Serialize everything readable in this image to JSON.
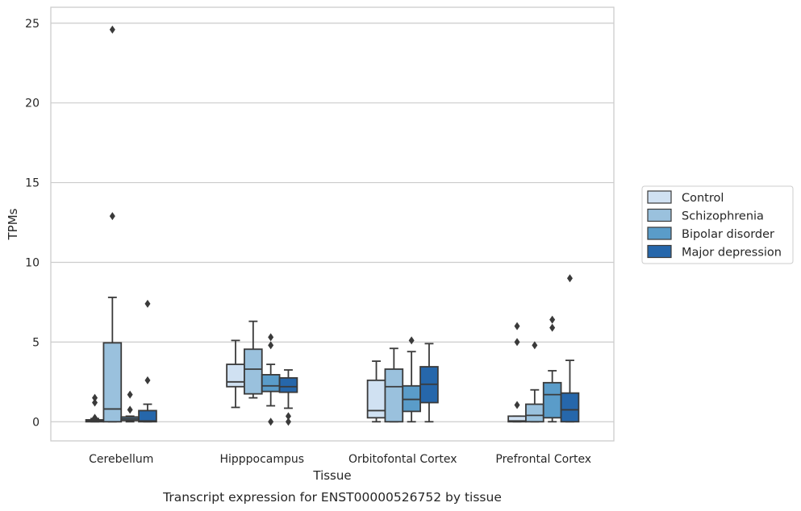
{
  "chart_data": {
    "type": "boxplot",
    "title": "",
    "xlabel": "Tissue",
    "ylabel": "TPMs",
    "caption": "Transcript expression for ENST00000526752 by tissue",
    "ylim": [
      -1.2,
      26
    ],
    "yticks": [
      0,
      5,
      10,
      15,
      20,
      25
    ],
    "grid": "horizontal",
    "legend_position": "right",
    "categories": [
      "Cerebellum",
      "Hipppocampus",
      "Orbitofontal Cortex",
      "Prefrontal Cortex"
    ],
    "series": [
      {
        "name": "Control",
        "color": "#d0e1f2",
        "boxes": [
          {
            "whisker_low": 0,
            "q1": 0,
            "median": 0.05,
            "q3": 0.12,
            "whisker_high": 0.2,
            "outliers": [
              0.25,
              1.2,
              1.5
            ]
          },
          {
            "whisker_low": 0.9,
            "q1": 2.2,
            "median": 2.5,
            "q3": 3.6,
            "whisker_high": 5.1,
            "outliers": []
          },
          {
            "whisker_low": 0,
            "q1": 0.25,
            "median": 0.7,
            "q3": 2.6,
            "whisker_high": 3.8,
            "outliers": []
          },
          {
            "whisker_low": 0,
            "q1": 0,
            "median": 0.05,
            "q3": 0.35,
            "whisker_high": 0.35,
            "outliers": [
              1.05,
              5.0,
              6.0
            ]
          }
        ]
      },
      {
        "name": "Schizophrenia",
        "color": "#9ac1dd",
        "boxes": [
          {
            "whisker_low": 0,
            "q1": 0,
            "median": 0.8,
            "q3": 4.95,
            "whisker_high": 7.8,
            "outliers": [
              12.9,
              24.6
            ]
          },
          {
            "whisker_low": 1.5,
            "q1": 1.75,
            "median": 3.3,
            "q3": 4.55,
            "whisker_high": 6.3,
            "outliers": []
          },
          {
            "whisker_low": 0,
            "q1": 0,
            "median": 2.2,
            "q3": 3.3,
            "whisker_high": 4.6,
            "outliers": []
          },
          {
            "whisker_low": 0,
            "q1": 0,
            "median": 0.4,
            "q3": 1.1,
            "whisker_high": 2.0,
            "outliers": [
              4.8
            ]
          }
        ]
      },
      {
        "name": "Bipolar disorder",
        "color": "#5a9cc9",
        "boxes": [
          {
            "whisker_low": 0,
            "q1": 0.08,
            "median": 0.18,
            "q3": 0.3,
            "whisker_high": 0.35,
            "outliers": [
              0.75,
              1.7
            ]
          },
          {
            "whisker_low": 1.0,
            "q1": 1.9,
            "median": 2.25,
            "q3": 2.95,
            "whisker_high": 3.6,
            "outliers": [
              0,
              4.8,
              5.3
            ]
          },
          {
            "whisker_low": 0,
            "q1": 0.65,
            "median": 1.4,
            "q3": 2.25,
            "whisker_high": 4.4,
            "outliers": [
              5.1
            ]
          },
          {
            "whisker_low": 0,
            "q1": 0.25,
            "median": 1.7,
            "q3": 2.45,
            "whisker_high": 3.2,
            "outliers": [
              5.9,
              6.4
            ]
          }
        ]
      },
      {
        "name": "Major depression",
        "color": "#2667ab",
        "boxes": [
          {
            "whisker_low": 0,
            "q1": 0,
            "median": 0.05,
            "q3": 0.7,
            "whisker_high": 1.1,
            "outliers": [
              2.6,
              7.4
            ]
          },
          {
            "whisker_low": 0.85,
            "q1": 1.85,
            "median": 2.2,
            "q3": 2.75,
            "whisker_high": 3.25,
            "outliers": [
              0,
              0.35
            ]
          },
          {
            "whisker_low": 0,
            "q1": 1.2,
            "median": 2.35,
            "q3": 3.45,
            "whisker_high": 4.9,
            "outliers": []
          },
          {
            "whisker_low": 0,
            "q1": 0,
            "median": 0.75,
            "q3": 1.8,
            "whisker_high": 3.85,
            "outliers": [
              9.0
            ]
          }
        ]
      }
    ]
  }
}
